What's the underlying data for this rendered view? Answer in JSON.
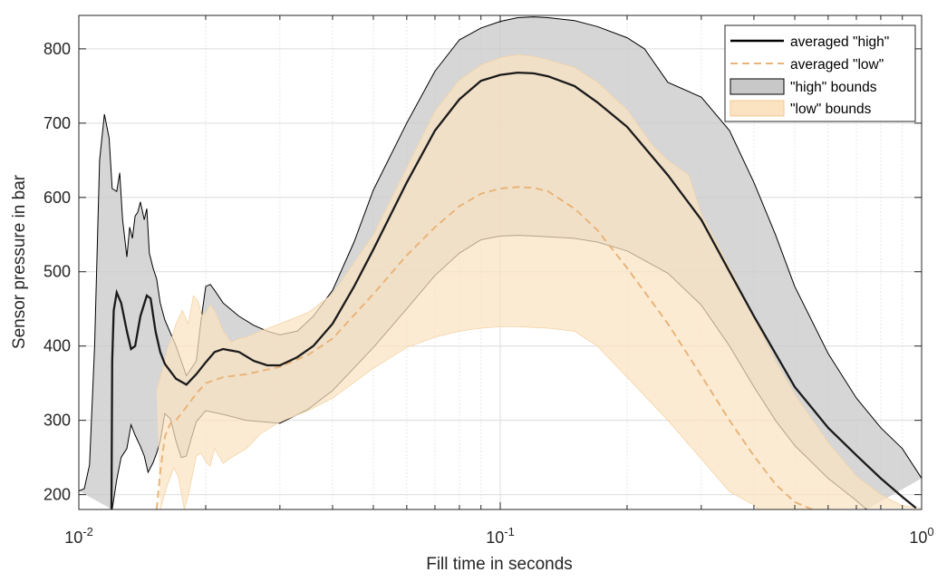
{
  "chart_data": {
    "type": "line",
    "xscale": "log",
    "xlim": [
      0.01,
      1
    ],
    "ylim": [
      180,
      845
    ],
    "xlabel": "Fill time in seconds",
    "ylabel": "Sensor pressure in bar",
    "x_ticks": [
      0.01,
      0.1,
      1
    ],
    "x_tick_labels": [
      {
        "base": "10",
        "exp": "-2"
      },
      {
        "base": "10",
        "exp": "-1"
      },
      {
        "base": "10",
        "exp": "0"
      }
    ],
    "y_ticks": [
      200,
      300,
      400,
      500,
      600,
      700,
      800
    ],
    "y_tick_labels": [
      "200",
      "300",
      "400",
      "500",
      "600",
      "700",
      "800"
    ],
    "grid": true,
    "legend": {
      "placement": "top-right",
      "entries": [
        "averaged \"high\"",
        "averaged \"low\"",
        "\"high\" bounds",
        "\"low\" bounds"
      ]
    },
    "colors": {
      "high_line": "#000000",
      "low_line": "#e8b47a",
      "high_fill": "#c8c8c8",
      "low_fill": "#fbe3c2",
      "grid": "#e0e0e0"
    },
    "series": [
      {
        "name": "averaged \"high\"",
        "style": "solid",
        "x": [
          0.01195,
          0.012,
          0.0121,
          0.0123,
          0.0126,
          0.013,
          0.0133,
          0.0136,
          0.014,
          0.0145,
          0.0148,
          0.0152,
          0.0156,
          0.016,
          0.017,
          0.018,
          0.019,
          0.02,
          0.021,
          0.022,
          0.024,
          0.026,
          0.028,
          0.03,
          0.033,
          0.036,
          0.04,
          0.045,
          0.05,
          0.06,
          0.07,
          0.08,
          0.09,
          0.1,
          0.11,
          0.12,
          0.13,
          0.15,
          0.17,
          0.2,
          0.25,
          0.3,
          0.35,
          0.4,
          0.45,
          0.5,
          0.6,
          0.7,
          0.8,
          0.9,
          0.97
        ],
        "y": [
          180,
          380,
          448,
          472,
          458,
          420,
          396,
          400,
          440,
          468,
          464,
          420,
          392,
          376,
          356,
          348,
          362,
          378,
          392,
          396,
          392,
          380,
          374,
          374,
          385,
          400,
          430,
          480,
          530,
          620,
          690,
          732,
          757,
          765,
          768,
          767,
          763,
          750,
          728,
          695,
          630,
          570,
          500,
          440,
          390,
          345,
          290,
          253,
          222,
          197,
          182
        ]
      },
      {
        "name": "averaged \"low\"",
        "style": "dashed",
        "x": [
          0.0153,
          0.0156,
          0.016,
          0.0165,
          0.017,
          0.018,
          0.019,
          0.02,
          0.022,
          0.025,
          0.03,
          0.035,
          0.04,
          0.05,
          0.06,
          0.07,
          0.08,
          0.09,
          0.1,
          0.11,
          0.12,
          0.13,
          0.15,
          0.17,
          0.2,
          0.25,
          0.3,
          0.35,
          0.4,
          0.45,
          0.5,
          0.55
        ],
        "y": [
          180,
          230,
          278,
          296,
          300,
          318,
          336,
          350,
          358,
          362,
          372,
          388,
          410,
          470,
          522,
          560,
          588,
          605,
          612,
          614,
          613,
          608,
          585,
          556,
          505,
          430,
          360,
          300,
          252,
          214,
          190,
          180
        ]
      }
    ],
    "bands": [
      {
        "name": "\"high\" bounds",
        "upper": {
          "x": [
            0.01,
            0.0103,
            0.0106,
            0.0109,
            0.0112,
            0.0115,
            0.0118,
            0.012,
            0.0123,
            0.0125,
            0.0127,
            0.013,
            0.0132,
            0.0134,
            0.0136,
            0.0138,
            0.014,
            0.0143,
            0.0145,
            0.0147,
            0.015,
            0.0153,
            0.0156,
            0.016,
            0.017,
            0.018,
            0.019,
            0.0195,
            0.02,
            0.0205,
            0.021,
            0.022,
            0.024,
            0.026,
            0.028,
            0.03,
            0.033,
            0.036,
            0.04,
            0.045,
            0.05,
            0.06,
            0.07,
            0.08,
            0.09,
            0.1,
            0.11,
            0.12,
            0.13,
            0.15,
            0.17,
            0.2,
            0.22,
            0.25,
            0.3,
            0.35,
            0.4,
            0.45,
            0.5,
            0.6,
            0.7,
            0.8,
            0.9,
            1.0
          ],
          "y": [
            205,
            208,
            240,
            400,
            650,
            712,
            680,
            612,
            608,
            633,
            570,
            520,
            560,
            545,
            575,
            580,
            594,
            570,
            585,
            525,
            505,
            490,
            458,
            435,
            400,
            360,
            380,
            435,
            480,
            483,
            475,
            458,
            440,
            428,
            420,
            415,
            420,
            440,
            475,
            540,
            610,
            700,
            770,
            812,
            828,
            837,
            842,
            843,
            842,
            838,
            830,
            815,
            800,
            755,
            735,
            690,
            620,
            550,
            480,
            390,
            330,
            290,
            262,
            222
          ]
        },
        "lower": {
          "x": [
            0.012,
            0.0123,
            0.0126,
            0.013,
            0.0133,
            0.0136,
            0.014,
            0.0143,
            0.0146,
            0.015,
            0.0153,
            0.0156,
            0.016,
            0.0165,
            0.017,
            0.0175,
            0.018,
            0.0185,
            0.019,
            0.02,
            0.022,
            0.025,
            0.03,
            0.035,
            0.04,
            0.05,
            0.06,
            0.07,
            0.08,
            0.09,
            0.1,
            0.11,
            0.12,
            0.13,
            0.15,
            0.17,
            0.2,
            0.25,
            0.3,
            0.35,
            0.4,
            0.45,
            0.5,
            0.6,
            0.7,
            0.74
          ],
          "y": [
            180,
            220,
            250,
            262,
            294,
            280,
            265,
            252,
            230,
            243,
            256,
            272,
            309,
            302,
            272,
            250,
            252,
            276,
            298,
            313,
            308,
            300,
            296,
            315,
            340,
            398,
            450,
            495,
            525,
            543,
            548,
            549,
            548,
            547,
            545,
            540,
            528,
            498,
            455,
            400,
            345,
            300,
            266,
            222,
            192,
            180
          ]
        }
      },
      {
        "name": "\"low\" bounds",
        "upper": {
          "x": [
            0.0153,
            0.0158,
            0.0162,
            0.0166,
            0.017,
            0.0176,
            0.0182,
            0.0187,
            0.0192,
            0.0196,
            0.02,
            0.0205,
            0.021,
            0.022,
            0.023,
            0.024,
            0.025,
            0.027,
            0.03,
            0.035,
            0.04,
            0.05,
            0.06,
            0.07,
            0.08,
            0.09,
            0.1,
            0.11,
            0.12,
            0.13,
            0.15,
            0.17,
            0.2,
            0.23,
            0.25,
            0.28,
            0.3,
            0.35,
            0.4,
            0.45,
            0.5,
            0.6,
            0.7,
            0.8,
            0.9,
            1.0
          ],
          "y": [
            340,
            368,
            395,
            410,
            430,
            448,
            430,
            468,
            460,
            440,
            445,
            455,
            448,
            420,
            405,
            410,
            412,
            420,
            430,
            445,
            470,
            550,
            640,
            716,
            758,
            778,
            788,
            792,
            790,
            785,
            775,
            755,
            718,
            670,
            650,
            630,
            578,
            505,
            438,
            380,
            335,
            270,
            225,
            200,
            185,
            182
          ]
        },
        "lower": {
          "x": [
            0.0156,
            0.0162,
            0.0168,
            0.0172,
            0.0178,
            0.0182,
            0.0186,
            0.019,
            0.0195,
            0.02,
            0.0205,
            0.021,
            0.022,
            0.023,
            0.025,
            0.027,
            0.03,
            0.035,
            0.04,
            0.05,
            0.06,
            0.07,
            0.08,
            0.09,
            0.1,
            0.11,
            0.12,
            0.13,
            0.15,
            0.17,
            0.2,
            0.25,
            0.3,
            0.35,
            0.4,
            0.41
          ],
          "y": [
            180,
            212,
            236,
            225,
            180,
            200,
            226,
            252,
            256,
            244,
            238,
            262,
            242,
            250,
            262,
            282,
            298,
            313,
            330,
            370,
            398,
            412,
            420,
            424,
            426,
            426,
            425,
            424,
            420,
            400,
            358,
            300,
            248,
            204,
            186,
            180
          ]
        }
      }
    ]
  }
}
